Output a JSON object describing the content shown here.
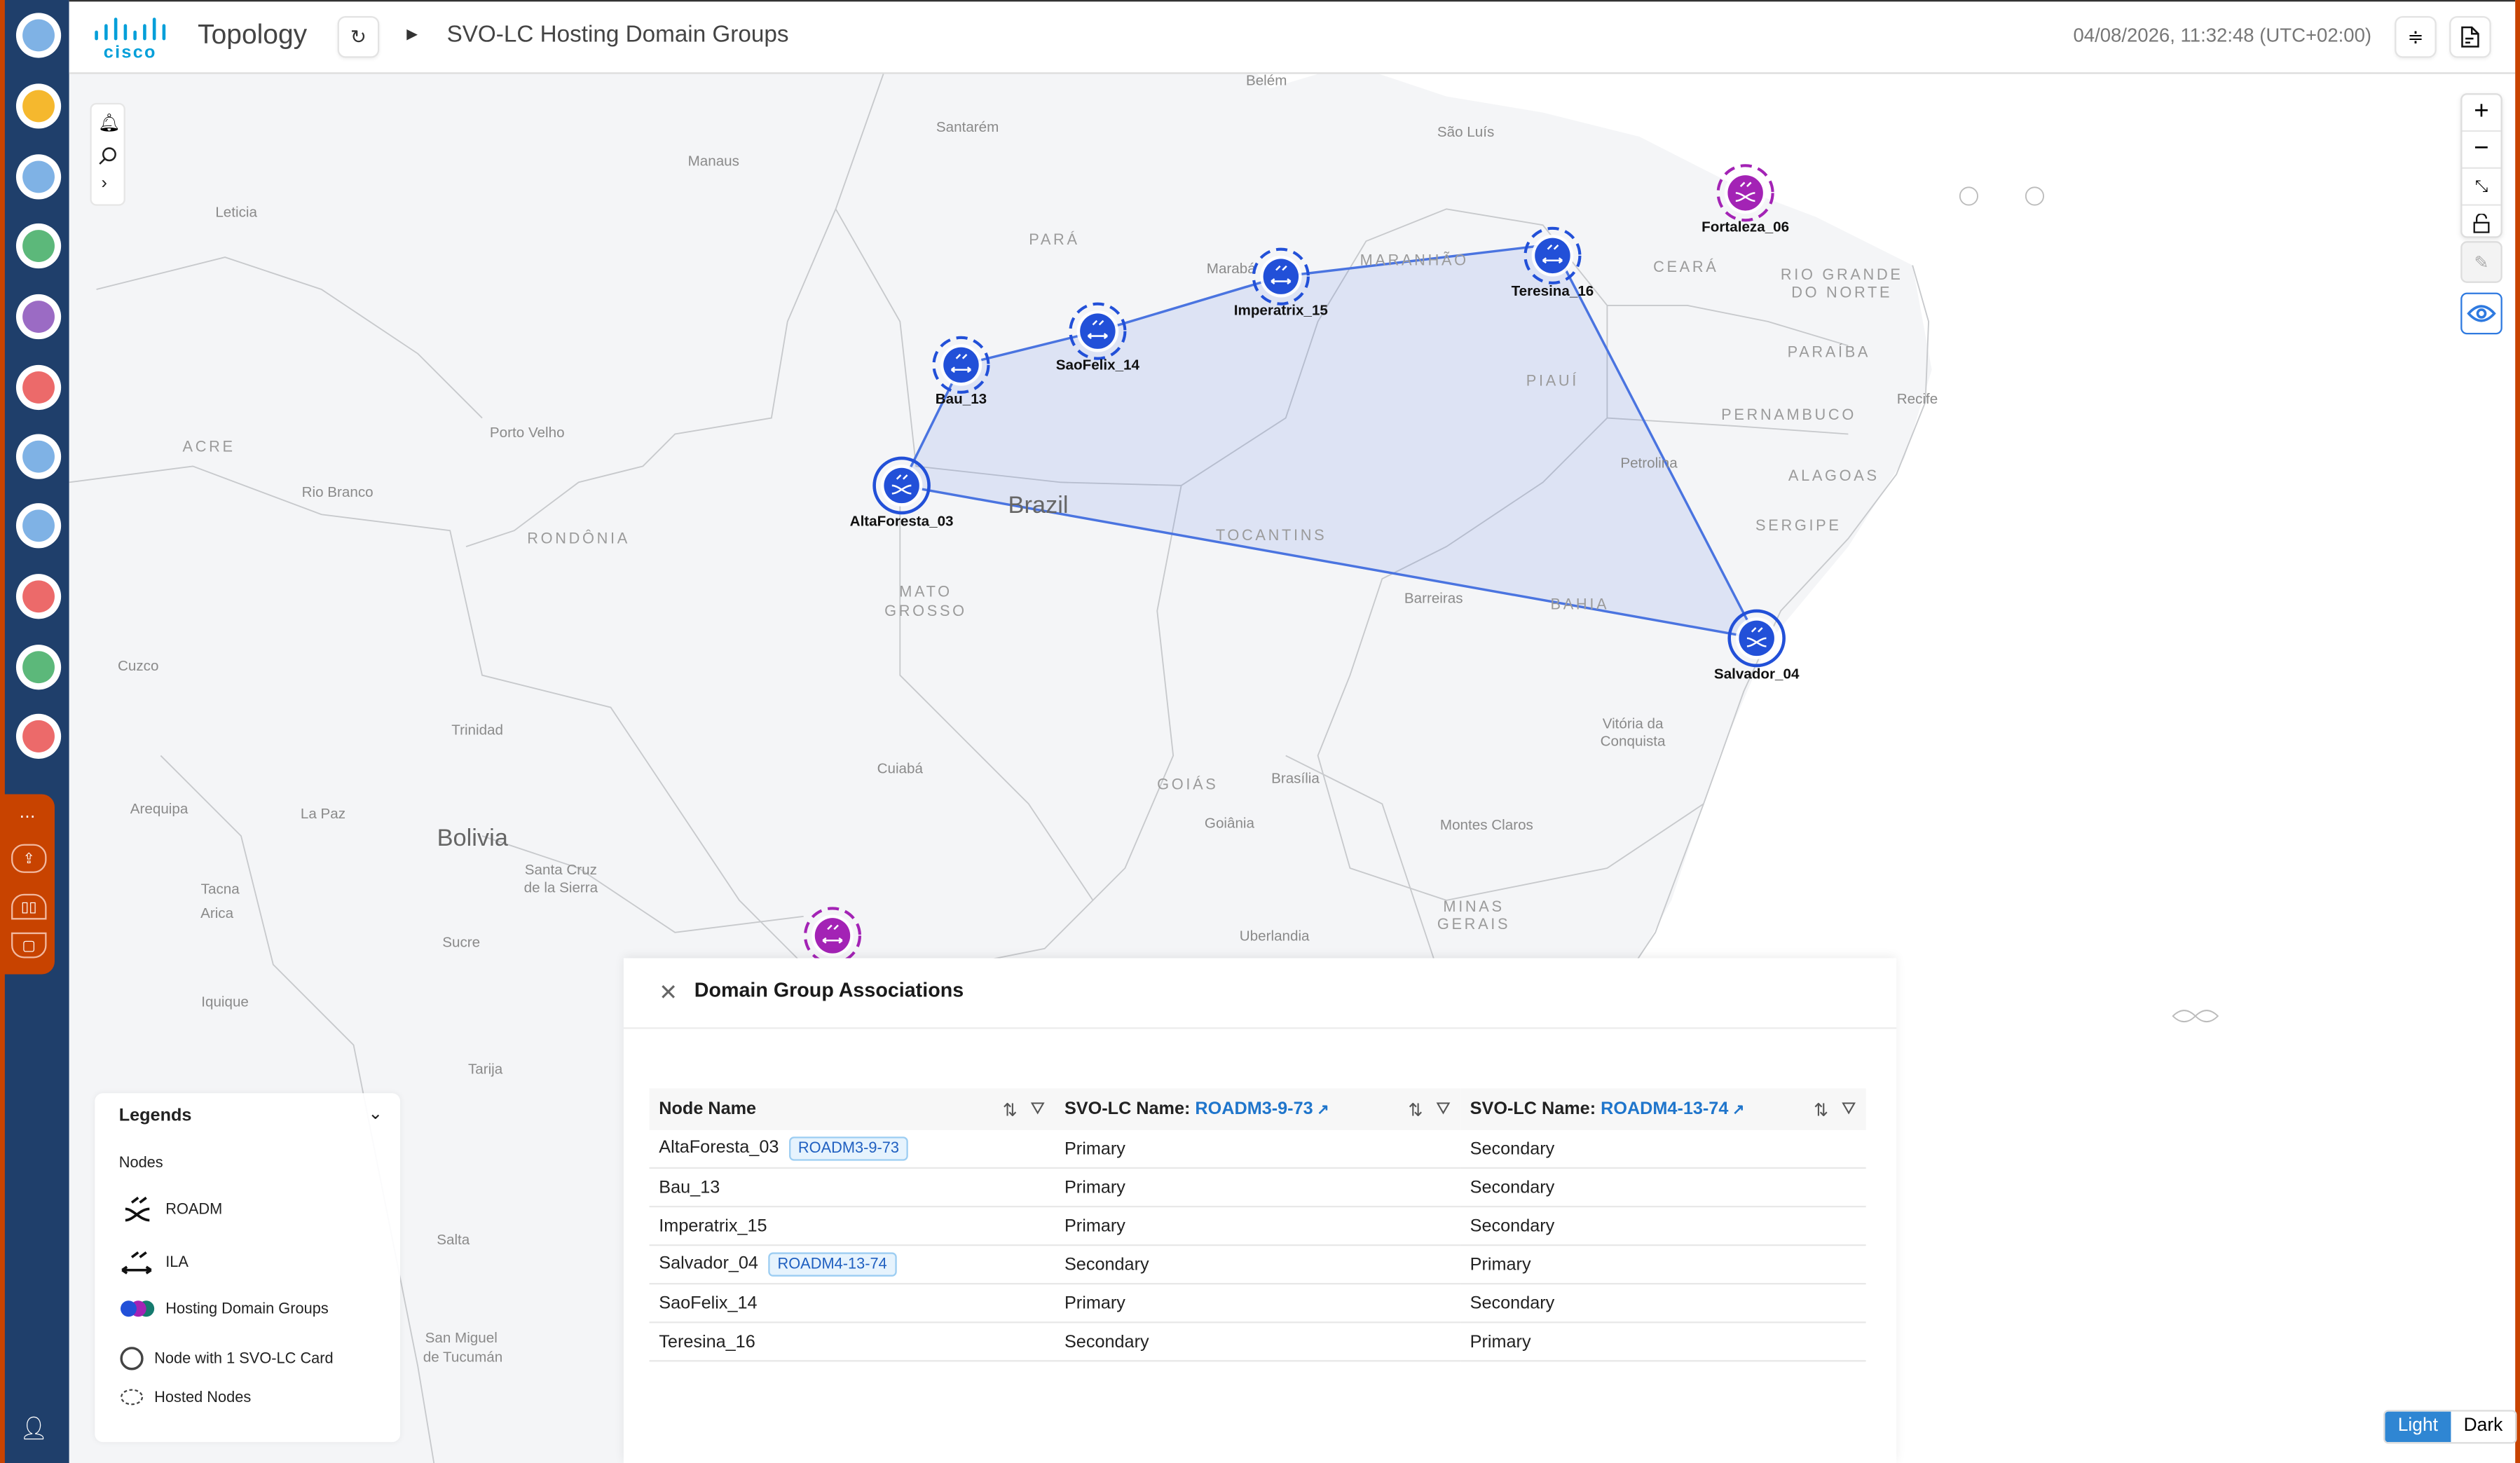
{
  "header": {
    "brand": "cisco",
    "app_title": "Topology",
    "breadcrumb_current": "SVO-LC Hosting Domain Groups",
    "timestamp": "04/08/2026, 11:32:48 (UTC+02:00)",
    "icons": [
      "refresh-icon",
      "caret-right-icon",
      "sliders-icon",
      "document-icon"
    ]
  },
  "sidebar": {
    "items": [
      {
        "icon": "globe-icon",
        "color": "#7fb2e5"
      },
      {
        "icon": "coins-add-icon",
        "color": "#f5b82e"
      },
      {
        "icon": "login-icon",
        "color": "#7fb2e5"
      },
      {
        "icon": "document-list-icon",
        "color": "#5cb87a"
      },
      {
        "icon": "circuit-add-icon",
        "color": "#9b6bc4"
      },
      {
        "icon": "alarm-bell-icon",
        "color": "#ec6a6a"
      },
      {
        "icon": "pie-chart-icon",
        "color": "#7fb2e5"
      },
      {
        "icon": "sync-disc-icon",
        "color": "#7fb2e5"
      },
      {
        "icon": "performance-chart-icon",
        "color": "#ec6a6a"
      },
      {
        "icon": "report-clock-icon",
        "color": "#5cb87a"
      },
      {
        "icon": "search-pulse-icon",
        "color": "#ec6a6a"
      }
    ],
    "bottom_icons": [
      "grid-dots-icon",
      "upload-screen-icon",
      "pause-icon",
      "square-icon"
    ],
    "user_icon": "user-icon"
  },
  "map": {
    "labels": [
      "Belém",
      "Santarém",
      "Manaus",
      "São Luís",
      "Leticia",
      "PARÁ",
      "MARANHÃO",
      "Marabá",
      "CEARÁ",
      "RIO GRANDE",
      "DO NORTE",
      "PARAÍBA",
      "PIAUÍ",
      "Recife",
      "PERNAMBUCO",
      "ACRE",
      "Porto Velho",
      "Petrolina",
      "ALAGOAS",
      "Rio Branco",
      "Brazil",
      "RONDÔNIA",
      "TOCANTINS",
      "SERGIPE",
      "MATO",
      "GROSSO",
      "Barreiras",
      "BAHIA",
      "Cuzco",
      "Vitória da",
      "Conquista",
      "Trinidad",
      "Cuiabá",
      "GOIÁS",
      "Brasília",
      "Arequipa",
      "La Paz",
      "Goiânia",
      "Montes Claros",
      "Bolivia",
      "Santa Cruz",
      "de la Sierra",
      "Tacna",
      "Arica",
      "MINAS",
      "GERAIS",
      "Sucre",
      "Uberlandia",
      "Iquique",
      "Tarija",
      "Salta",
      "San Miguel",
      "de Tucumán"
    ],
    "nodes": [
      {
        "name": "AltaForesta_03",
        "type": "ROADM",
        "color": "#2250d8",
        "ring": "solid"
      },
      {
        "name": "Bau_13",
        "type": "ILA",
        "color": "#2250d8",
        "ring": "dashed"
      },
      {
        "name": "SaoFelix_14",
        "type": "ILA",
        "color": "#2250d8",
        "ring": "dashed"
      },
      {
        "name": "Imperatrix_15",
        "type": "ILA",
        "color": "#2250d8",
        "ring": "dashed"
      },
      {
        "name": "Teresina_16",
        "type": "ILA",
        "color": "#2250d8",
        "ring": "dashed"
      },
      {
        "name": "Salvador_04",
        "type": "ROADM",
        "color": "#2250d8",
        "ring": "solid"
      },
      {
        "name": "Fortaleza_06",
        "type": "ROADM",
        "color": "#a323b5",
        "ring": "dashed"
      },
      {
        "name": "",
        "type": "ILA",
        "color": "#a323b5",
        "ring": "dashed"
      }
    ],
    "domain_group_color": "#4a74e0",
    "tools": [
      "bell-icon",
      "search-icon",
      "chevron-right-icon"
    ],
    "zoom_controls": [
      "zoom-in-icon",
      "zoom-out-icon",
      "fit-icon",
      "unlock-icon"
    ],
    "edit_icon": "pencil-icon",
    "view_icon": "eye-icon"
  },
  "panel": {
    "title": "Domain Group Associations",
    "columns": [
      {
        "label": "Node Name",
        "link": ""
      },
      {
        "label": "SVO-LC Name: ",
        "link": "ROADM3-9-73"
      },
      {
        "label": "SVO-LC Name: ",
        "link": "ROADM4-13-74"
      }
    ],
    "rows": [
      {
        "node": "AltaForesta_03",
        "chip": "ROADM3-9-73",
        "c1": "Primary",
        "c2": "Secondary"
      },
      {
        "node": "Bau_13",
        "chip": "",
        "c1": "Primary",
        "c2": "Secondary"
      },
      {
        "node": "Imperatrix_15",
        "chip": "",
        "c1": "Primary",
        "c2": "Secondary"
      },
      {
        "node": "Salvador_04",
        "chip": "ROADM4-13-74",
        "c1": "Secondary",
        "c2": "Primary"
      },
      {
        "node": "SaoFelix_14",
        "chip": "",
        "c1": "Primary",
        "c2": "Secondary"
      },
      {
        "node": "Teresina_16",
        "chip": "",
        "c1": "Secondary",
        "c2": "Primary"
      }
    ]
  },
  "legend": {
    "title": "Legends",
    "section": "Nodes",
    "items": [
      "ROADM",
      "ILA",
      "Hosting Domain Groups",
      "Node with 1 SVO-LC Card",
      "Hosted Nodes"
    ],
    "group_colors": [
      "#2250d8",
      "#a323b5",
      "#157a6e"
    ]
  },
  "theme": {
    "light": "Light",
    "dark": "Dark",
    "selected": "Light",
    "accent": "#2f86d3"
  }
}
